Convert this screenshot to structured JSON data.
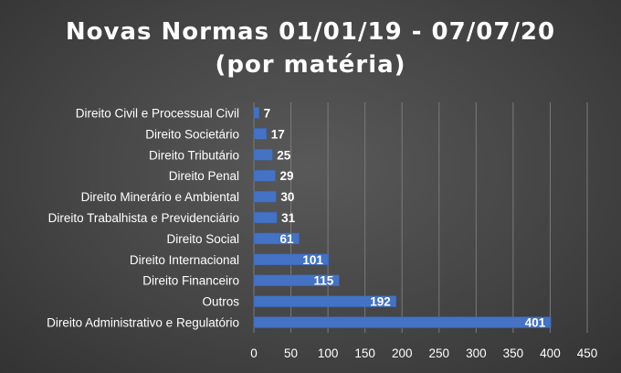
{
  "chart_data": {
    "type": "bar",
    "orientation": "horizontal",
    "title": "Novas Normas 01/01/19 - 07/07/20",
    "subtitle": "(por matéria)",
    "categories": [
      "Direito Civil e Processual Civil",
      "Direito Societário",
      "Direito Tributário",
      "Direito Penal",
      "Direito Minerário e  Ambiental",
      "Direito Trabalhista e Previdenciário",
      "Direito Social",
      "Direito Internacional",
      "Direito Financeiro",
      "Outros",
      "Direito Administrativo e Regulatório"
    ],
    "values": [
      7,
      17,
      25,
      29,
      30,
      31,
      61,
      101,
      115,
      192,
      401
    ],
    "xlabel": "",
    "ylabel": "",
    "xlim": [
      0,
      450
    ],
    "xticks": [
      0,
      50,
      100,
      150,
      200,
      250,
      300,
      350,
      400,
      450
    ],
    "grid": "vertical",
    "legend": "none",
    "data_labels": true,
    "bar_color": "#4472c4",
    "background_color": "#404040",
    "text_color": "#ffffff"
  }
}
